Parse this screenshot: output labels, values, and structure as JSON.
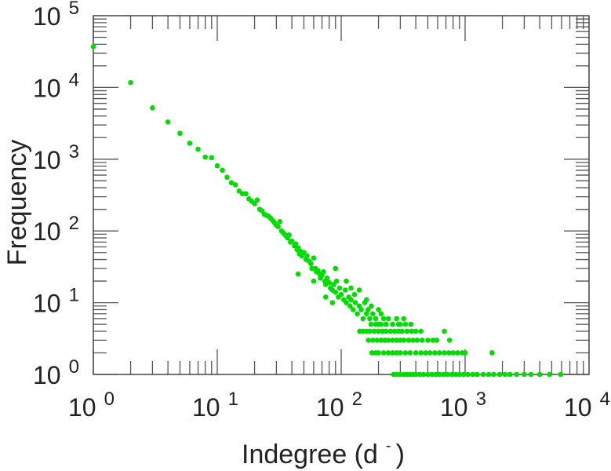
{
  "chart_data": {
    "type": "scatter",
    "title": "",
    "xlabel": "Indegree (d",
    "xlabel_sup": "-",
    "xlabel_close": ")",
    "ylabel": "Frequency",
    "xscale": "log",
    "yscale": "log",
    "xlim": [
      1,
      10000
    ],
    "ylim": [
      1,
      100000
    ],
    "x_ticks": [
      {
        "base": "10",
        "exp": "0",
        "value": 1
      },
      {
        "base": "10",
        "exp": "1",
        "value": 10
      },
      {
        "base": "10",
        "exp": "2",
        "value": 100
      },
      {
        "base": "10",
        "exp": "3",
        "value": 1000
      },
      {
        "base": "10",
        "exp": "4",
        "value": 10000
      }
    ],
    "y_ticks": [
      {
        "base": "10",
        "exp": "0",
        "value": 1
      },
      {
        "base": "10",
        "exp": "1",
        "value": 10
      },
      {
        "base": "10",
        "exp": "2",
        "value": 100
      },
      {
        "base": "10",
        "exp": "3",
        "value": 1000
      },
      {
        "base": "10",
        "exp": "4",
        "value": 10000
      },
      {
        "base": "10",
        "exp": "5",
        "value": 100000
      }
    ],
    "grid": false,
    "marker_color": "#00dd00",
    "points": [
      [
        1,
        37000
      ],
      [
        2,
        11700
      ],
      [
        3,
        5200
      ],
      [
        4,
        3300
      ],
      [
        5,
        2300
      ],
      [
        6,
        1670
      ],
      [
        7,
        1380
      ],
      [
        8,
        1070
      ],
      [
        9,
        1050
      ],
      [
        10,
        810
      ],
      [
        11,
        700
      ],
      [
        12,
        560
      ],
      [
        13,
        470
      ],
      [
        14,
        440
      ],
      [
        15,
        360
      ],
      [
        16,
        330
      ],
      [
        17,
        330
      ],
      [
        18,
        280
      ],
      [
        19,
        260
      ],
      [
        20,
        240
      ],
      [
        21,
        270
      ],
      [
        22,
        200
      ],
      [
        23,
        190
      ],
      [
        24,
        170
      ],
      [
        25,
        165
      ],
      [
        26,
        160
      ],
      [
        27,
        150
      ],
      [
        28,
        140
      ],
      [
        29,
        130
      ],
      [
        30,
        120
      ],
      [
        31,
        115
      ],
      [
        32,
        135
      ],
      [
        33,
        100
      ],
      [
        34,
        95
      ],
      [
        35,
        90
      ],
      [
        36,
        85
      ],
      [
        37,
        80
      ],
      [
        38,
        88
      ],
      [
        39,
        70
      ],
      [
        40,
        72
      ],
      [
        42,
        62
      ],
      [
        43,
        66
      ],
      [
        44,
        55
      ],
      [
        45,
        58
      ],
      [
        46,
        48
      ],
      [
        47,
        52
      ],
      [
        48,
        45
      ],
      [
        50,
        50
      ],
      [
        52,
        40
      ],
      [
        53,
        45
      ],
      [
        55,
        38
      ],
      [
        57,
        35
      ],
      [
        58,
        30
      ],
      [
        60,
        42
      ],
      [
        62,
        30
      ],
      [
        63,
        27
      ],
      [
        65,
        28
      ],
      [
        67,
        25
      ],
      [
        68,
        22
      ],
      [
        70,
        24
      ],
      [
        72,
        27
      ],
      [
        74,
        20
      ],
      [
        75,
        18
      ],
      [
        77,
        22
      ],
      [
        80,
        19
      ],
      [
        82,
        16
      ],
      [
        85,
        15
      ],
      [
        87,
        18
      ],
      [
        90,
        14
      ],
      [
        92,
        20
      ],
      [
        95,
        12
      ],
      [
        97,
        16
      ],
      [
        100,
        13
      ],
      [
        105,
        11
      ],
      [
        108,
        15
      ],
      [
        110,
        10
      ],
      [
        115,
        12
      ],
      [
        118,
        9
      ],
      [
        120,
        11
      ],
      [
        125,
        8
      ],
      [
        128,
        13
      ],
      [
        130,
        10
      ],
      [
        135,
        7
      ],
      [
        140,
        9
      ],
      [
        145,
        8
      ],
      [
        150,
        6
      ],
      [
        155,
        10
      ],
      [
        160,
        7
      ],
      [
        165,
        8
      ],
      [
        170,
        6
      ],
      [
        175,
        9
      ],
      [
        180,
        7
      ],
      [
        190,
        6
      ],
      [
        200,
        5
      ],
      [
        210,
        7
      ],
      [
        220,
        6
      ],
      [
        230,
        5
      ],
      [
        240,
        6
      ],
      [
        260,
        5
      ],
      [
        280,
        6
      ],
      [
        300,
        5
      ],
      [
        320,
        6
      ],
      [
        45,
        25
      ],
      [
        90,
        30
      ],
      [
        75,
        12
      ],
      [
        110,
        20
      ],
      [
        140,
        15
      ],
      [
        60,
        20
      ],
      [
        120,
        16
      ],
      [
        85,
        10
      ],
      [
        160,
        11
      ],
      [
        200,
        8
      ],
      [
        141,
        4
      ],
      [
        150,
        4
      ],
      [
        160,
        4
      ],
      [
        170,
        4
      ],
      [
        185,
        4
      ],
      [
        200,
        4
      ],
      [
        215,
        4
      ],
      [
        230,
        4
      ],
      [
        250,
        4
      ],
      [
        270,
        4
      ],
      [
        290,
        4
      ],
      [
        310,
        4
      ],
      [
        340,
        4
      ],
      [
        370,
        4
      ],
      [
        400,
        4
      ],
      [
        440,
        4
      ],
      [
        680,
        4
      ],
      [
        174,
        5
      ],
      [
        190,
        5
      ],
      [
        210,
        5
      ],
      [
        230,
        5
      ],
      [
        260,
        5
      ],
      [
        290,
        5
      ],
      [
        330,
        5
      ],
      [
        365,
        5
      ],
      [
        166,
        3
      ],
      [
        180,
        3
      ],
      [
        195,
        3
      ],
      [
        210,
        3
      ],
      [
        225,
        3
      ],
      [
        240,
        3
      ],
      [
        260,
        3
      ],
      [
        280,
        3
      ],
      [
        300,
        3
      ],
      [
        320,
        3
      ],
      [
        350,
        3
      ],
      [
        380,
        3
      ],
      [
        410,
        3
      ],
      [
        450,
        3
      ],
      [
        500,
        3
      ],
      [
        550,
        3
      ],
      [
        590,
        3
      ],
      [
        750,
        3
      ],
      [
        177,
        2
      ],
      [
        190,
        2
      ],
      [
        200,
        2
      ],
      [
        220,
        2
      ],
      [
        240,
        2
      ],
      [
        260,
        2
      ],
      [
        280,
        2
      ],
      [
        300,
        2
      ],
      [
        330,
        2
      ],
      [
        360,
        2
      ],
      [
        400,
        2
      ],
      [
        440,
        2
      ],
      [
        480,
        2
      ],
      [
        520,
        2
      ],
      [
        570,
        2
      ],
      [
        620,
        2
      ],
      [
        680,
        2
      ],
      [
        740,
        2
      ],
      [
        800,
        2
      ],
      [
        870,
        2
      ],
      [
        950,
        2
      ],
      [
        1000,
        2
      ],
      [
        1650,
        2
      ],
      [
        265,
        1
      ],
      [
        280,
        1
      ],
      [
        300,
        1
      ],
      [
        320,
        1
      ],
      [
        340,
        1
      ],
      [
        360,
        1
      ],
      [
        380,
        1
      ],
      [
        400,
        1
      ],
      [
        430,
        1
      ],
      [
        460,
        1
      ],
      [
        500,
        1
      ],
      [
        540,
        1
      ],
      [
        580,
        1
      ],
      [
        620,
        1
      ],
      [
        670,
        1
      ],
      [
        720,
        1
      ],
      [
        780,
        1
      ],
      [
        840,
        1
      ],
      [
        900,
        1
      ],
      [
        970,
        1
      ],
      [
        1050,
        1
      ],
      [
        1150,
        1
      ],
      [
        1250,
        1
      ],
      [
        1400,
        1
      ],
      [
        1550,
        1
      ],
      [
        1700,
        1
      ],
      [
        1900,
        1
      ],
      [
        2100,
        1
      ],
      [
        2300,
        1
      ],
      [
        2600,
        1
      ],
      [
        3000,
        1
      ],
      [
        3400,
        1
      ],
      [
        4000,
        1
      ],
      [
        4800,
        1
      ],
      [
        5900,
        1
      ]
    ]
  }
}
